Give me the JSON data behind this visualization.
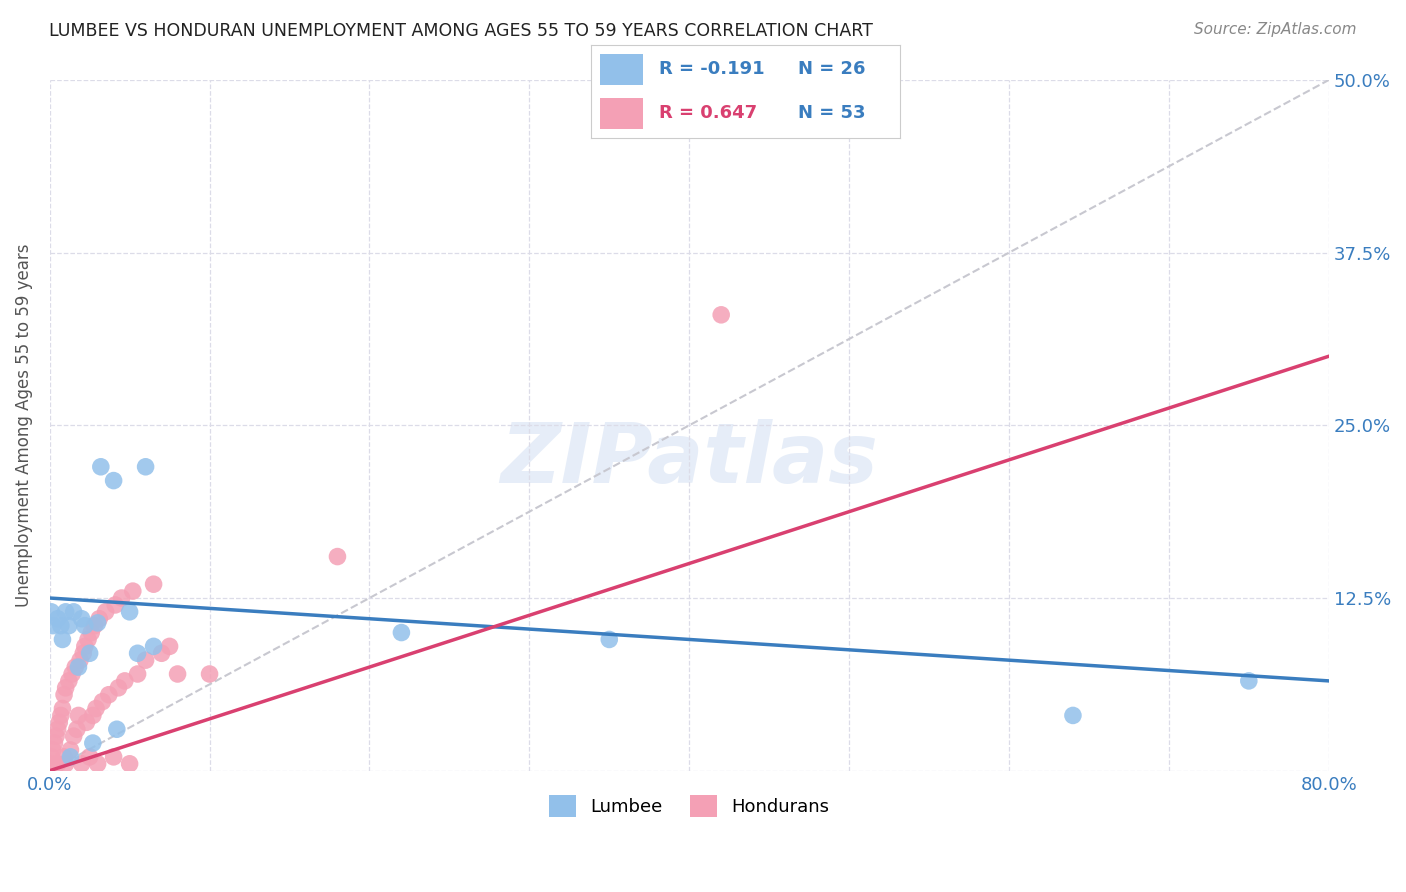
{
  "title": "LUMBEE VS HONDURAN UNEMPLOYMENT AMONG AGES 55 TO 59 YEARS CORRELATION CHART",
  "source": "Source: ZipAtlas.com",
  "ylabel": "Unemployment Among Ages 55 to 59 years",
  "xlim": [
    0.0,
    0.8
  ],
  "ylim": [
    0.0,
    0.5
  ],
  "xticks": [
    0.0,
    0.1,
    0.2,
    0.3,
    0.4,
    0.5,
    0.6,
    0.7,
    0.8
  ],
  "xticklabels": [
    "0.0%",
    "",
    "",
    "",
    "",
    "",
    "",
    "",
    "80.0%"
  ],
  "yticks": [
    0.0,
    0.125,
    0.25,
    0.375,
    0.5
  ],
  "yticklabels": [
    "",
    "12.5%",
    "25.0%",
    "37.5%",
    "50.0%"
  ],
  "lumbee_color": "#92C0EA",
  "honduran_color": "#F4A0B5",
  "lumbee_line_color": "#3A7DBF",
  "honduran_line_color": "#D94070",
  "trend_line_color": "#C8C8D0",
  "legend_R_lumbee": "-0.191",
  "legend_N_lumbee": "26",
  "legend_R_honduran": "0.647",
  "legend_N_honduran": "53",
  "watermark": "ZIPatlas",
  "background_color": "#FFFFFF",
  "grid_color": "#DCDCE8",
  "lumbee_x": [
    0.001,
    0.002,
    0.005,
    0.007,
    0.008,
    0.01,
    0.012,
    0.013,
    0.015,
    0.018,
    0.02,
    0.022,
    0.025,
    0.027,
    0.03,
    0.032,
    0.04,
    0.042,
    0.05,
    0.055,
    0.06,
    0.065,
    0.22,
    0.35,
    0.64,
    0.75
  ],
  "lumbee_y": [
    0.115,
    0.105,
    0.11,
    0.105,
    0.095,
    0.115,
    0.105,
    0.01,
    0.115,
    0.075,
    0.11,
    0.105,
    0.085,
    0.02,
    0.107,
    0.22,
    0.21,
    0.03,
    0.115,
    0.085,
    0.22,
    0.09,
    0.1,
    0.095,
    0.04,
    0.065
  ],
  "honduran_x": [
    0.0,
    0.001,
    0.002,
    0.003,
    0.004,
    0.005,
    0.005,
    0.006,
    0.007,
    0.008,
    0.009,
    0.009,
    0.01,
    0.01,
    0.012,
    0.013,
    0.014,
    0.015,
    0.016,
    0.017,
    0.018,
    0.019,
    0.02,
    0.021,
    0.022,
    0.023,
    0.024,
    0.025,
    0.026,
    0.027,
    0.028,
    0.029,
    0.03,
    0.031,
    0.033,
    0.035,
    0.037,
    0.04,
    0.041,
    0.043,
    0.045,
    0.047,
    0.05,
    0.052,
    0.055,
    0.06,
    0.065,
    0.07,
    0.075,
    0.08,
    0.1,
    0.18,
    0.42
  ],
  "honduran_y": [
    0.005,
    0.01,
    0.015,
    0.02,
    0.025,
    0.005,
    0.03,
    0.035,
    0.04,
    0.045,
    0.01,
    0.055,
    0.005,
    0.06,
    0.065,
    0.015,
    0.07,
    0.025,
    0.075,
    0.03,
    0.04,
    0.08,
    0.005,
    0.085,
    0.09,
    0.035,
    0.095,
    0.01,
    0.1,
    0.04,
    0.105,
    0.045,
    0.005,
    0.11,
    0.05,
    0.115,
    0.055,
    0.01,
    0.12,
    0.06,
    0.125,
    0.065,
    0.005,
    0.13,
    0.07,
    0.08,
    0.135,
    0.085,
    0.09,
    0.07,
    0.07,
    0.155,
    0.33
  ]
}
